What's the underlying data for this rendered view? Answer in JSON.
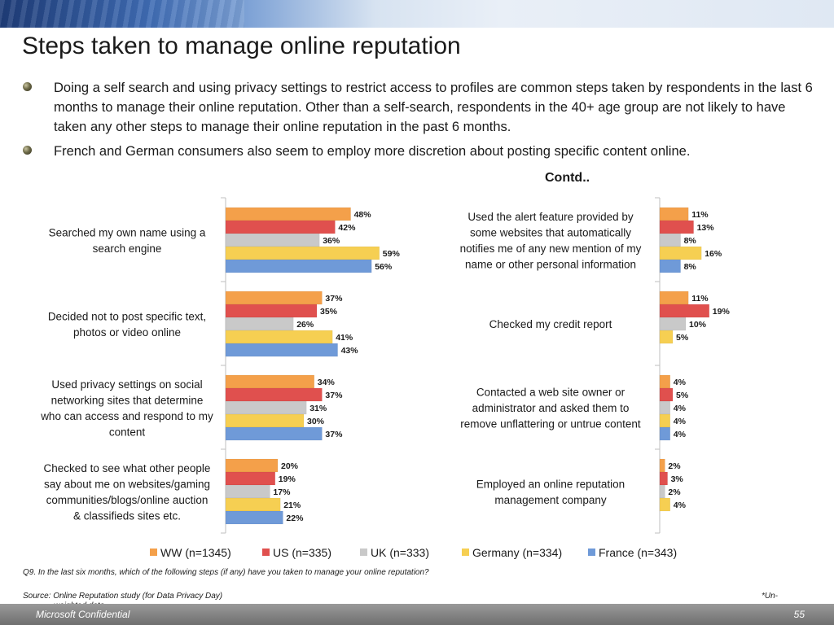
{
  "title": "Steps taken to manage online reputation",
  "bullets": [
    "Doing a self search and using privacy settings to restrict access to profiles are common steps taken by respondents in the last 6 months to manage their online reputation. Other than a self-search, respondents in the 40+ age group are not likely to have taken any other steps to manage their online reputation in the past 6 months.",
    "French and German consumers also seem to employ more discretion about posting specific content online."
  ],
  "contd_label": "Contd..",
  "colors": {
    "WW": "#f4a04a",
    "US": "#e0504e",
    "UK": "#c9c9c9",
    "Germany": "#f6cf52",
    "France": "#6f9ad8"
  },
  "chart_data": [
    {
      "type": "bar",
      "orientation": "horizontal",
      "categories": [
        "Searched my own name using a search engine",
        "Decided not to post specific text, photos or video online",
        "Used privacy settings on social networking sites that determine who can access and respond to my content",
        "Checked to see what other people say about me on websites/gaming communities/blogs/online auction & classifieds sites etc."
      ],
      "series": [
        {
          "name": "WW (n=1345)",
          "values": [
            48,
            37,
            34,
            20
          ]
        },
        {
          "name": "US (n=335)",
          "values": [
            42,
            35,
            37,
            19
          ]
        },
        {
          "name": "UK (n=333)",
          "values": [
            36,
            26,
            31,
            17
          ]
        },
        {
          "name": "Germany (n=334)",
          "values": [
            59,
            41,
            30,
            21
          ]
        },
        {
          "name": "France (n=343)",
          "values": [
            56,
            43,
            37,
            22
          ]
        }
      ],
      "unit": "%"
    },
    {
      "type": "bar",
      "orientation": "horizontal",
      "categories": [
        "Used the alert feature provided by some websites that automatically notifies me of any new mention of my name or other personal information",
        "Checked my credit report",
        "Contacted a web site owner or administrator and asked them to remove unflattering or untrue content",
        "Employed an online reputation management company"
      ],
      "series": [
        {
          "name": "WW (n=1345)",
          "values": [
            11,
            11,
            4,
            2
          ]
        },
        {
          "name": "US (n=335)",
          "values": [
            13,
            19,
            5,
            3
          ]
        },
        {
          "name": "UK (n=333)",
          "values": [
            8,
            10,
            4,
            2
          ]
        },
        {
          "name": "Germany (n=334)",
          "values": [
            16,
            5,
            4,
            4
          ]
        },
        {
          "name": "France (n=343)",
          "values": [
            8,
            null,
            4,
            null
          ]
        }
      ],
      "unit": "%"
    }
  ],
  "legend": [
    {
      "label": "WW (n=1345)",
      "color": "#f4a04a"
    },
    {
      "label": "US (n=335)",
      "color": "#e0504e"
    },
    {
      "label": "UK (n=333)",
      "color": "#c9c9c9"
    },
    {
      "label": "Germany (n=334)",
      "color": "#f6cf52"
    },
    {
      "label": "France (n=343)",
      "color": "#6f9ad8"
    }
  ],
  "footnotes": {
    "question": "Q9. In the last six months, which of the following steps (if any) have you taken to manage your online reputation?",
    "source": "Source: Online Reputation study (for Data Privacy Day)",
    "unweighted_marker": "*Un-",
    "unweighted_rest": "weighted data"
  },
  "footer": {
    "confidential": "Microsoft Confidential",
    "page_number": "55"
  }
}
